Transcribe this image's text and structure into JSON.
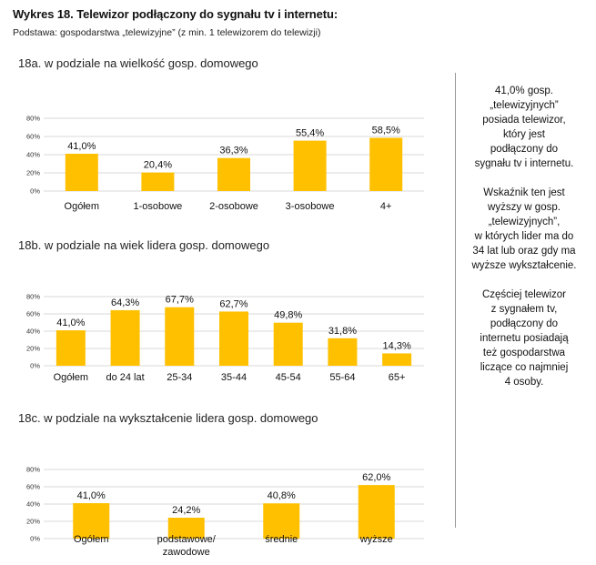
{
  "header": {
    "title": "Wykres 18. Telewizor podłączony do sygnału tv i internetu:",
    "subtitle": "Podstawa: gospodarstwa „telewizyjne” (z min. 1 telewizorem do telewizji)"
  },
  "sections": [
    {
      "title": "18a. w podziale na wielkość gosp. domowego"
    },
    {
      "title": "18b. w podziale na wiek lidera gosp. domowego"
    },
    {
      "title": "18c. w podziale na wykształcenie lidera gosp. domowego"
    }
  ],
  "side_notes": [
    "41,0% gosp.\n„telewizyjnych”\nposiada telewizor,\nktóry jest\npodłączony do\nsygnału tv i internetu.",
    "Wskaźnik ten jest\nwyższy w gosp.\n„telewizyjnych”,\nw których lider ma do\n34 lat lub oraz gdy ma\nwyższe wykształcenie.",
    "Częściej telewizor\nz sygnałem tv,\npodłączony do\ninternetu posiadają\nteż gospodarstwa\nliczące co najmniej\n4 osoby."
  ],
  "colors": {
    "bar": "#FFC000",
    "grid": "#d9d9d9"
  },
  "chart_data": [
    {
      "type": "bar",
      "title": "18a. w podziale na wielkość gosp. domowego",
      "categories": [
        "Ogółem",
        "1-osobowe",
        "2-osobowe",
        "3-osobowe",
        "4+"
      ],
      "values": [
        41.0,
        20.4,
        36.3,
        55.4,
        58.5
      ],
      "labels": [
        "41,0%",
        "20,4%",
        "36,3%",
        "55,4%",
        "58,5%"
      ],
      "yticks": [
        "0%",
        "20%",
        "40%",
        "60%",
        "80%"
      ],
      "ylim": [
        0,
        80
      ]
    },
    {
      "type": "bar",
      "title": "18b. w podziale na wiek lidera gosp. domowego",
      "categories": [
        "Ogółem",
        "do 24 lat",
        "25-34",
        "35-44",
        "45-54",
        "55-64",
        "65+"
      ],
      "values": [
        41.0,
        64.3,
        67.7,
        62.7,
        49.8,
        31.8,
        14.3
      ],
      "labels": [
        "41,0%",
        "64,3%",
        "67,7%",
        "62,7%",
        "49,8%",
        "31,8%",
        "14,3%"
      ],
      "yticks": [
        "0%",
        "20%",
        "40%",
        "60%",
        "80%"
      ],
      "ylim": [
        0,
        80
      ]
    },
    {
      "type": "bar",
      "title": "18c. w podziale na wykształcenie lidera gosp. domowego",
      "categories": [
        "Ogółem",
        "podstawowe/\nzawodowe",
        "średnie",
        "wyższe"
      ],
      "values": [
        41.0,
        24.2,
        40.8,
        62.0
      ],
      "labels": [
        "41,0%",
        "24,2%",
        "40,8%",
        "62,0%"
      ],
      "yticks": [
        "0%",
        "20%",
        "40%",
        "60%",
        "80%"
      ],
      "ylim": [
        0,
        80
      ]
    }
  ]
}
